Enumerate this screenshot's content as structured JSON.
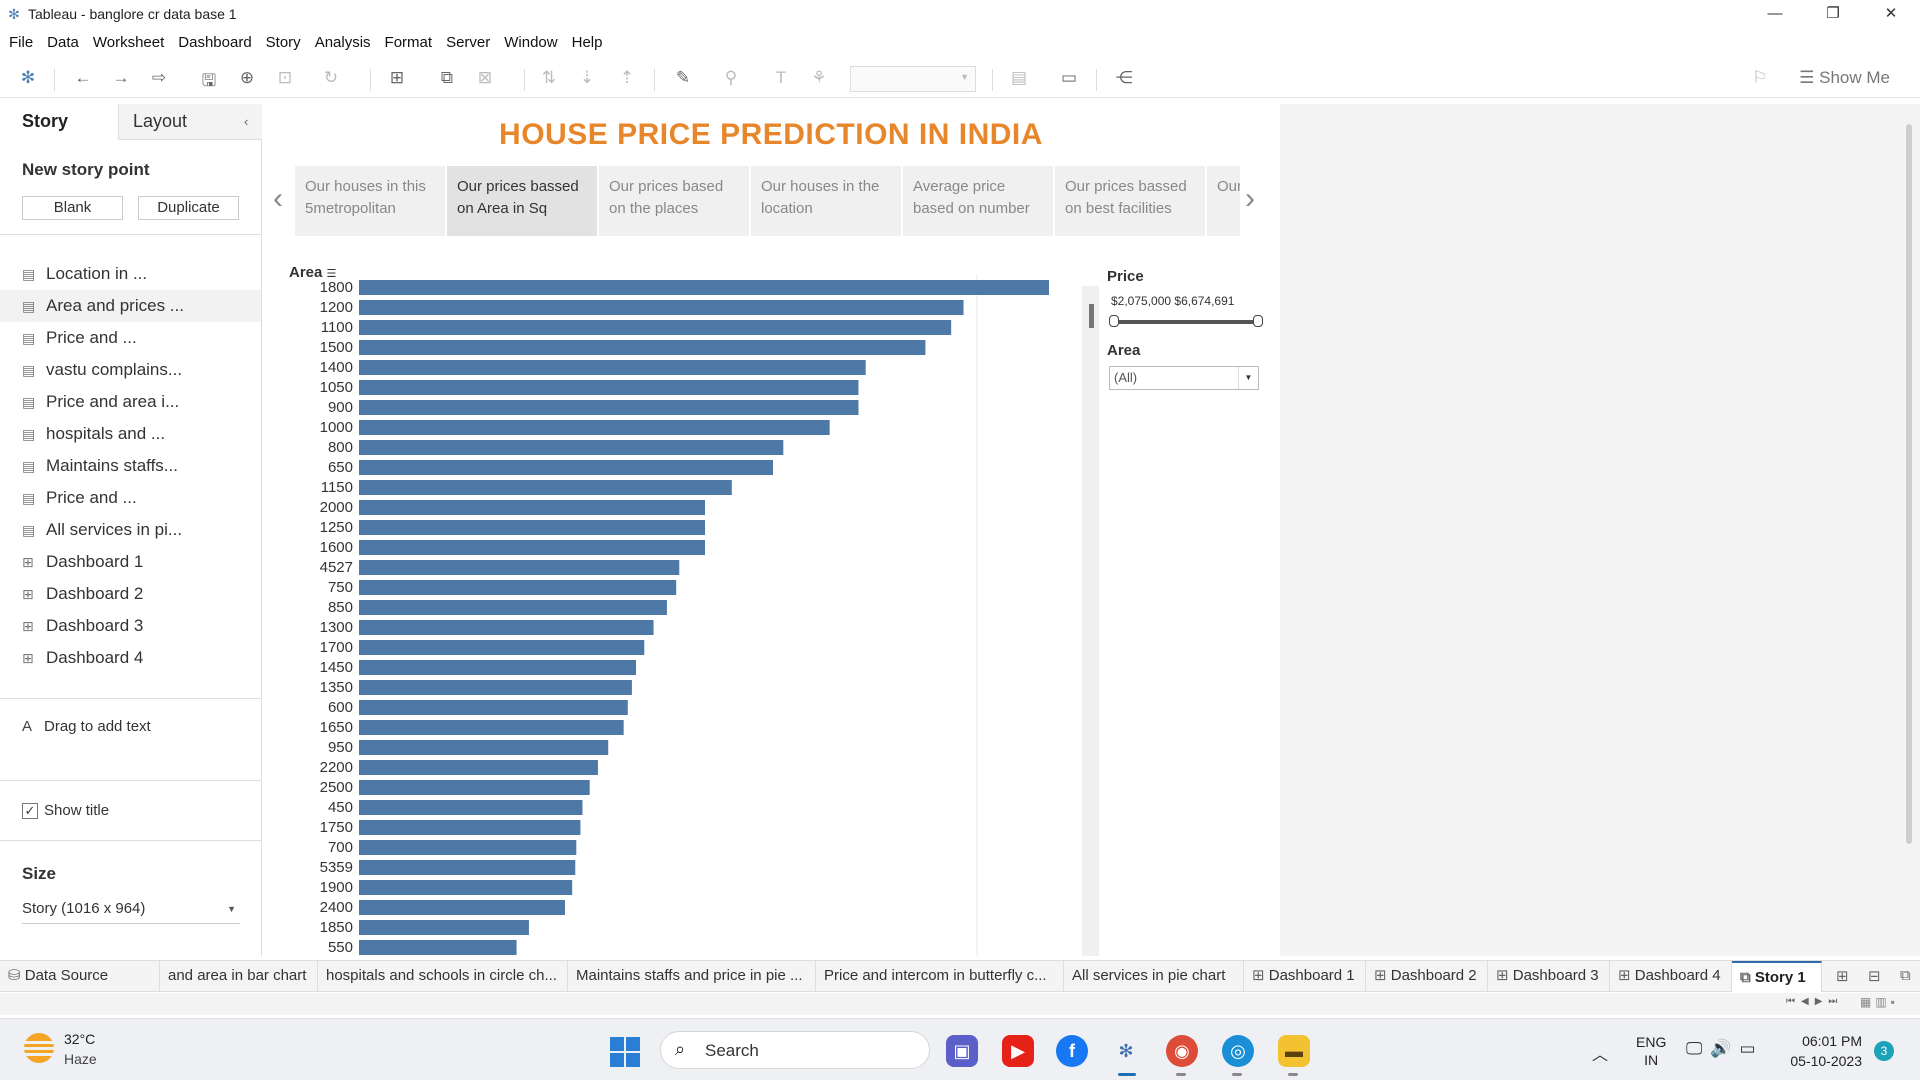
{
  "window": {
    "title": "Tableau - banglore cr data base 1",
    "controls": [
      "—",
      "❐",
      "✕"
    ]
  },
  "menu": [
    "File",
    "Data",
    "Worksheet",
    "Dashboard",
    "Story",
    "Analysis",
    "Format",
    "Server",
    "Window",
    "Help"
  ],
  "toolbar": {
    "show_me": "Show Me"
  },
  "left_panel": {
    "tab_story": "Story",
    "tab_layout": "Layout",
    "new_story_point": "New story point",
    "blank_button": "Blank",
    "duplicate_button": "Duplicate",
    "sheets": [
      {
        "label": "Location in ...",
        "type": "sheet"
      },
      {
        "label": "Area and prices ...",
        "type": "sheet"
      },
      {
        "label": "Price and ...",
        "type": "sheet"
      },
      {
        "label": "vastu complains...",
        "type": "sheet"
      },
      {
        "label": "Price and area i...",
        "type": "sheet"
      },
      {
        "label": "hospitals and ...",
        "type": "sheet"
      },
      {
        "label": "Maintains staffs...",
        "type": "sheet"
      },
      {
        "label": "Price and ...",
        "type": "sheet"
      },
      {
        "label": "All services in pi...",
        "type": "sheet"
      },
      {
        "label": "Dashboard 1",
        "type": "dashboard"
      },
      {
        "label": "Dashboard 2",
        "type": "dashboard"
      },
      {
        "label": "Dashboard 3",
        "type": "dashboard"
      },
      {
        "label": "Dashboard 4",
        "type": "dashboard"
      }
    ],
    "drag_to_add_text": "Drag to add text",
    "show_title": "Show title",
    "size_label": "Size",
    "size_value": "Story (1016 x 964)"
  },
  "story": {
    "title": "HOUSE PRICE PREDICTION IN INDIA",
    "title_color": "#e8862b",
    "story_points": [
      "Our houses in this 5metropolitan",
      "Our prices bassed on Area in Sq",
      "Our prices based on the places",
      "Our houses in the location",
      "Average price based on number",
      "Our prices bassed on best facilities",
      "Our th"
    ],
    "active_story_point": 1
  },
  "chart_data": {
    "type": "bar",
    "orientation": "horizontal",
    "row_header": "Area",
    "bar_color": "#4e79a7",
    "categories": [
      "1800",
      "1200",
      "1100",
      "1500",
      "1400",
      "1050",
      "900",
      "1000",
      "800",
      "650",
      "1150",
      "2000",
      "1250",
      "1600",
      "4527",
      "750",
      "850",
      "1300",
      "1700",
      "1450",
      "1350",
      "600",
      "1650",
      "950",
      "2200",
      "2500",
      "450",
      "1750",
      "700",
      "5359",
      "1900",
      "2400",
      "1850",
      "550"
    ],
    "values": [
      3350,
      2935,
      2875,
      2750,
      2460,
      2425,
      2425,
      2285,
      2060,
      2010,
      1810,
      1680,
      1680,
      1680,
      1555,
      1540,
      1495,
      1430,
      1385,
      1345,
      1325,
      1305,
      1285,
      1210,
      1160,
      1120,
      1085,
      1075,
      1055,
      1050,
      1035,
      1000,
      825,
      765
    ],
    "grid": true
  },
  "filters": {
    "price_label": "Price",
    "price_range": "$2,075,000 $6,674,691",
    "area_label": "Area",
    "area_value": "(All)"
  },
  "sheet_tabs": [
    {
      "label": "Data Source",
      "icon": "database-icon"
    },
    {
      "label": "and area in bar chart",
      "icon": ""
    },
    {
      "label": "hospitals and schools in circle ch...",
      "icon": ""
    },
    {
      "label": "Maintains staffs and price in pie ...",
      "icon": ""
    },
    {
      "label": "Price and intercom in butterfly c...",
      "icon": ""
    },
    {
      "label": "All services in pie chart",
      "icon": ""
    },
    {
      "label": "Dashboard 1",
      "icon": "dashboard-icon"
    },
    {
      "label": "Dashboard 2",
      "icon": "dashboard-icon"
    },
    {
      "label": "Dashboard 3",
      "icon": "dashboard-icon"
    },
    {
      "label": "Dashboard 4",
      "icon": "dashboard-icon"
    },
    {
      "label": "Story 1",
      "icon": "story-icon"
    }
  ],
  "taskbar": {
    "temp": "32°C",
    "weather": "Haze",
    "search": "Search",
    "lang1": "ENG",
    "lang2": "IN",
    "time": "06:01 PM",
    "date": "05-10-2023",
    "notifications": "3"
  }
}
